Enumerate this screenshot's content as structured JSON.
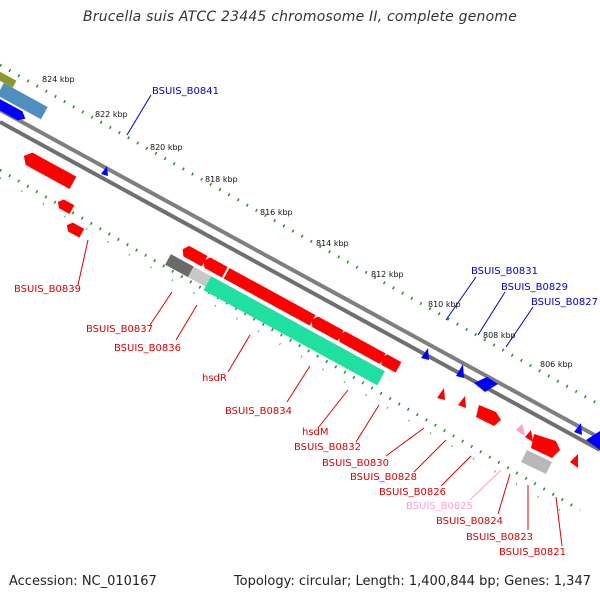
{
  "title": "Brucella suis ATCC 23445 chromosome II, complete genome",
  "footer": {
    "accession": "Accession: NC_010167",
    "summary": "Topology: circular; Length: 1,400,844 bp; Genes: 1,347"
  },
  "colors": {
    "cds_forward": "#0000ff",
    "cds_reverse": "#ff0000",
    "rna": "#00e0a0",
    "pseudo": "#9e9e9e",
    "backbone": "#7f7f7f",
    "tick": "#2e8b2e"
  },
  "scale_ticks": [
    "824 kbp",
    "822 kbp",
    "820 kbp",
    "818 kbp",
    "816 kbp",
    "814 kbp",
    "812 kbp",
    "810 kbp",
    "808 kbp",
    "806 kbp"
  ],
  "forward_labels": [
    "BSUIS_B0841",
    "BSUIS_B0831",
    "BSUIS_B0829",
    "BSUIS_B0827"
  ],
  "reverse_labels": [
    "BSUIS_B0839",
    "BSUIS_B0837",
    "BSUIS_B0836",
    "hsdR",
    "BSUIS_B0834",
    "hsdM",
    "BSUIS_B0832",
    "BSUIS_B0830",
    "BSUIS_B0828",
    "BSUIS_B0826",
    "BSUIS_B0825",
    "BSUIS_B0824",
    "BSUIS_B0823",
    "BSUIS_B0821"
  ]
}
